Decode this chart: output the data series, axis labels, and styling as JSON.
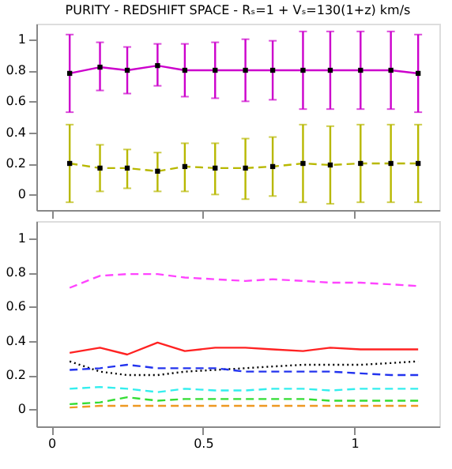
{
  "chart_data": [
    {
      "type": "line",
      "title": "PURITY - REDSHIFT SPACE - Rₛ=1 + Vₛ=130(1+z) km/s",
      "x": [
        0.06,
        0.16,
        0.25,
        0.35,
        0.44,
        0.54,
        0.64,
        0.73,
        0.83,
        0.92,
        1.02,
        1.12,
        1.21
      ],
      "xlim": [
        -0.05,
        1.28
      ],
      "xticks": [
        0,
        0.5,
        1
      ],
      "ylim": [
        -0.1,
        1.1
      ],
      "yticks": [
        0,
        0.2,
        0.4,
        0.6,
        0.8,
        1
      ],
      "tick_labels": "y",
      "grid": false,
      "marker": "square",
      "series": [
        {
          "color": "#cc00cc",
          "line_style": "solid",
          "values": [
            0.78,
            0.82,
            0.8,
            0.83,
            0.8,
            0.8,
            0.8,
            0.8,
            0.8,
            0.8,
            0.8,
            0.8,
            0.78
          ],
          "errors": [
            [
              0.53,
              1.03
            ],
            [
              0.67,
              0.98
            ],
            [
              0.65,
              0.95
            ],
            [
              0.7,
              0.97
            ],
            [
              0.63,
              0.97
            ],
            [
              0.62,
              0.98
            ],
            [
              0.6,
              1.0
            ],
            [
              0.61,
              0.99
            ],
            [
              0.55,
              1.05
            ],
            [
              0.55,
              1.05
            ],
            [
              0.55,
              1.05
            ],
            [
              0.55,
              1.05
            ],
            [
              0.53,
              1.03
            ]
          ]
        },
        {
          "color": "#b8b800",
          "line_style": "dashed",
          "values": [
            0.2,
            0.17,
            0.17,
            0.15,
            0.18,
            0.17,
            0.17,
            0.18,
            0.2,
            0.19,
            0.2,
            0.2,
            0.2
          ],
          "errors": [
            [
              -0.05,
              0.45
            ],
            [
              0.02,
              0.32
            ],
            [
              0.04,
              0.29
            ],
            [
              0.02,
              0.27
            ],
            [
              0.02,
              0.33
            ],
            [
              0.0,
              0.33
            ],
            [
              -0.03,
              0.36
            ],
            [
              -0.01,
              0.37
            ],
            [
              -0.05,
              0.45
            ],
            [
              -0.06,
              0.44
            ],
            [
              -0.05,
              0.45
            ],
            [
              -0.05,
              0.45
            ],
            [
              -0.05,
              0.45
            ]
          ]
        }
      ]
    },
    {
      "type": "line",
      "x": [
        0.06,
        0.16,
        0.25,
        0.35,
        0.44,
        0.54,
        0.64,
        0.73,
        0.83,
        0.92,
        1.02,
        1.12,
        1.21
      ],
      "xlim": [
        -0.05,
        1.28
      ],
      "xticks": [
        0,
        0.5,
        1
      ],
      "ylim": [
        -0.1,
        1.1
      ],
      "yticks": [
        0,
        0.2,
        0.4,
        0.6,
        0.8,
        1
      ],
      "grid": false,
      "marker": "none",
      "series": [
        {
          "color": "#ff44ff",
          "line_style": "dashed",
          "values": [
            0.71,
            0.78,
            0.79,
            0.79,
            0.77,
            0.76,
            0.75,
            0.76,
            0.75,
            0.74,
            0.74,
            0.73,
            0.72
          ]
        },
        {
          "color": "#ff2222",
          "line_style": "solid",
          "values": [
            0.33,
            0.36,
            0.32,
            0.39,
            0.34,
            0.36,
            0.36,
            0.35,
            0.34,
            0.36,
            0.35,
            0.35,
            0.35
          ]
        },
        {
          "color": "#000000",
          "line_style": "dotted",
          "values": [
            0.28,
            0.22,
            0.2,
            0.2,
            0.22,
            0.23,
            0.24,
            0.25,
            0.26,
            0.26,
            0.26,
            0.27,
            0.28
          ]
        },
        {
          "color": "#2233ee",
          "line_style": "dashed",
          "values": [
            0.23,
            0.24,
            0.26,
            0.24,
            0.24,
            0.24,
            0.22,
            0.22,
            0.22,
            0.22,
            0.21,
            0.2,
            0.2
          ]
        },
        {
          "color": "#33eeee",
          "line_style": "dashed",
          "values": [
            0.12,
            0.13,
            0.12,
            0.1,
            0.12,
            0.11,
            0.11,
            0.12,
            0.12,
            0.11,
            0.12,
            0.12,
            0.12
          ]
        },
        {
          "color": "#33dd33",
          "line_style": "dashed",
          "values": [
            0.03,
            0.04,
            0.07,
            0.05,
            0.06,
            0.06,
            0.06,
            0.06,
            0.06,
            0.05,
            0.05,
            0.05,
            0.05
          ]
        },
        {
          "color": "#ee9922",
          "line_style": "dashed",
          "values": [
            0.01,
            0.02,
            0.02,
            0.02,
            0.02,
            0.02,
            0.02,
            0.02,
            0.02,
            0.02,
            0.02,
            0.02,
            0.02
          ]
        }
      ]
    }
  ]
}
